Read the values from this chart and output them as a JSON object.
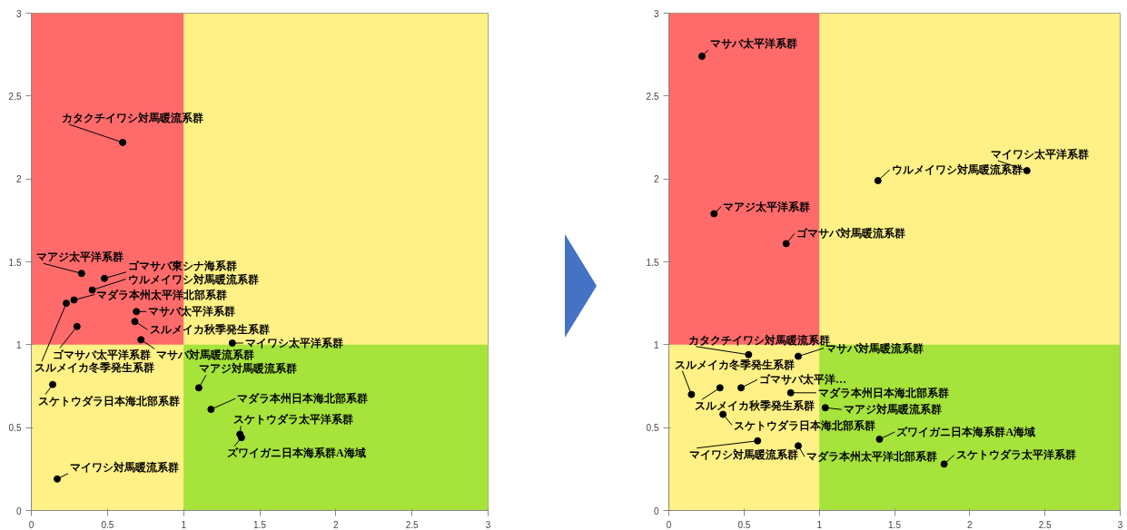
{
  "chart_data": [
    {
      "type": "scatter",
      "x": [
        0.6,
        0.33,
        0.48,
        0.4,
        0.28,
        0.23,
        0.69,
        0.68,
        0.3,
        0.72,
        1.32,
        0.14,
        1.1,
        1.18,
        1.37,
        1.38,
        0.17
      ],
      "values": [
        2.22,
        1.43,
        1.4,
        1.33,
        1.27,
        1.25,
        1.2,
        1.14,
        1.11,
        1.03,
        1.01,
        0.76,
        0.74,
        0.61,
        0.46,
        0.44,
        0.19
      ],
      "color": "#000000",
      "marker": "circle",
      "grid": false,
      "xlim": [
        0,
        3
      ],
      "ylim": [
        0,
        3
      ],
      "xticks": [
        0,
        0.5,
        1,
        1.5,
        2,
        2.5,
        3
      ],
      "yticks": [
        0,
        0.5,
        1,
        1.5,
        2,
        2.5,
        3
      ],
      "bands": [
        {
          "axis": "x",
          "from": 0,
          "to": 3,
          "color": "#fff185"
        },
        {
          "axis": "x",
          "from": 0,
          "to": 1,
          "color": "#ff6b6b"
        },
        {
          "axis": "y",
          "from": 0,
          "to": 1,
          "color": "#a6e33b"
        }
      ],
      "annotations": [
        {
          "text": "カタクチイワシ対馬暖流系群",
          "x": 0.6,
          "y": 2.22
        },
        {
          "text": "マアジ太平洋系群",
          "x": 0.33,
          "y": 1.43
        },
        {
          "text": "ゴマサバ東シナ海系群",
          "x": 0.48,
          "y": 1.4
        },
        {
          "text": "ウルメイワシ対馬暖流系群",
          "x": 0.4,
          "y": 1.33
        },
        {
          "text": "マダラ本州太平洋北部系群",
          "x": 0.28,
          "y": 1.27
        },
        {
          "text": "スルメイカ冬季発生系群",
          "x": 0.23,
          "y": 1.25
        },
        {
          "text": "マサバ太平洋系群",
          "x": 0.69,
          "y": 1.2
        },
        {
          "text": "スルメイカ秋季発生系群",
          "x": 0.68,
          "y": 1.14
        },
        {
          "text": "ゴマサバ太平洋系群",
          "x": 0.3,
          "y": 1.11
        },
        {
          "text": "マサバ対馬暖流系群",
          "x": 0.72,
          "y": 1.03
        },
        {
          "text": "マイワシ太平洋系群",
          "x": 1.32,
          "y": 1.01
        },
        {
          "text": "スケトウダラ日本海北部系群",
          "x": 0.14,
          "y": 0.76
        },
        {
          "text": "マアジ対馬暖流系群",
          "x": 1.1,
          "y": 0.74
        },
        {
          "text": "マダラ本州日本海北部系群",
          "x": 1.18,
          "y": 0.61
        },
        {
          "text": "スケトウダラ太平洋系群",
          "x": 1.37,
          "y": 0.46
        },
        {
          "text": "ズワイガニ日本海系群A海域",
          "x": 1.38,
          "y": 0.44
        },
        {
          "text": "マイワシ対馬暖流系群",
          "x": 0.17,
          "y": 0.19
        }
      ]
    },
    {
      "type": "scatter",
      "x": [
        0.22,
        1.39,
        2.38,
        0.3,
        0.78,
        0.53,
        0.86,
        0.15,
        0.34,
        0.48,
        0.81,
        1.04,
        0.36,
        1.4,
        0.59,
        0.86,
        1.83
      ],
      "values": [
        2.74,
        1.99,
        2.05,
        1.79,
        1.61,
        0.94,
        0.93,
        0.7,
        0.74,
        0.74,
        0.71,
        0.62,
        0.58,
        0.43,
        0.42,
        0.39,
        0.28
      ],
      "color": "#000000",
      "marker": "circle",
      "grid": false,
      "xlim": [
        0,
        3
      ],
      "ylim": [
        0,
        3
      ],
      "xticks": [
        0,
        0.5,
        1,
        1.5,
        2,
        2.5,
        3
      ],
      "yticks": [
        0,
        0.5,
        1,
        1.5,
        2,
        2.5,
        3
      ],
      "bands": [
        {
          "axis": "x",
          "from": 0,
          "to": 3,
          "color": "#fff185"
        },
        {
          "axis": "x",
          "from": 0,
          "to": 1,
          "color": "#ff6b6b"
        },
        {
          "axis": "y",
          "from": 0,
          "to": 1,
          "color": "#a6e33b"
        }
      ],
      "annotations": [
        {
          "text": "マサバ太平洋系群",
          "x": 0.22,
          "y": 2.74
        },
        {
          "text": "ウルメイワシ対馬暖流系群",
          "x": 1.39,
          "y": 1.99
        },
        {
          "text": "マイワシ太平洋系群",
          "x": 2.38,
          "y": 2.05
        },
        {
          "text": "マアジ太平洋系群",
          "x": 0.3,
          "y": 1.79
        },
        {
          "text": "ゴマサバ対馬暖流系群",
          "x": 0.78,
          "y": 1.61
        },
        {
          "text": "カタクチイワシ対馬暖流系群",
          "x": 0.53,
          "y": 0.94
        },
        {
          "text": "マサバ対馬暖流系群",
          "x": 0.86,
          "y": 0.93
        },
        {
          "text": "スルメイカ冬季発生系群",
          "x": 0.15,
          "y": 0.7
        },
        {
          "text": "スルメイカ秋季発生系群",
          "x": 0.34,
          "y": 0.74
        },
        {
          "text": "ゴマサバ太平洋…",
          "x": 0.48,
          "y": 0.74
        },
        {
          "text": "マダラ本州日本海北部系群",
          "x": 0.81,
          "y": 0.71
        },
        {
          "text": "マアジ対馬暖流系群",
          "x": 1.04,
          "y": 0.62
        },
        {
          "text": "スケトウダラ日本海北部系群",
          "x": 0.36,
          "y": 0.58
        },
        {
          "text": "ズワイガニ日本海系群A海域",
          "x": 1.4,
          "y": 0.43
        },
        {
          "text": "マイワシ対馬暖流系群",
          "x": 0.59,
          "y": 0.42
        },
        {
          "text": "マダラ本州太平洋北部系群",
          "x": 0.86,
          "y": 0.39
        },
        {
          "text": "スケトウダラ太平洋系群",
          "x": 1.83,
          "y": 0.28
        }
      ]
    }
  ]
}
